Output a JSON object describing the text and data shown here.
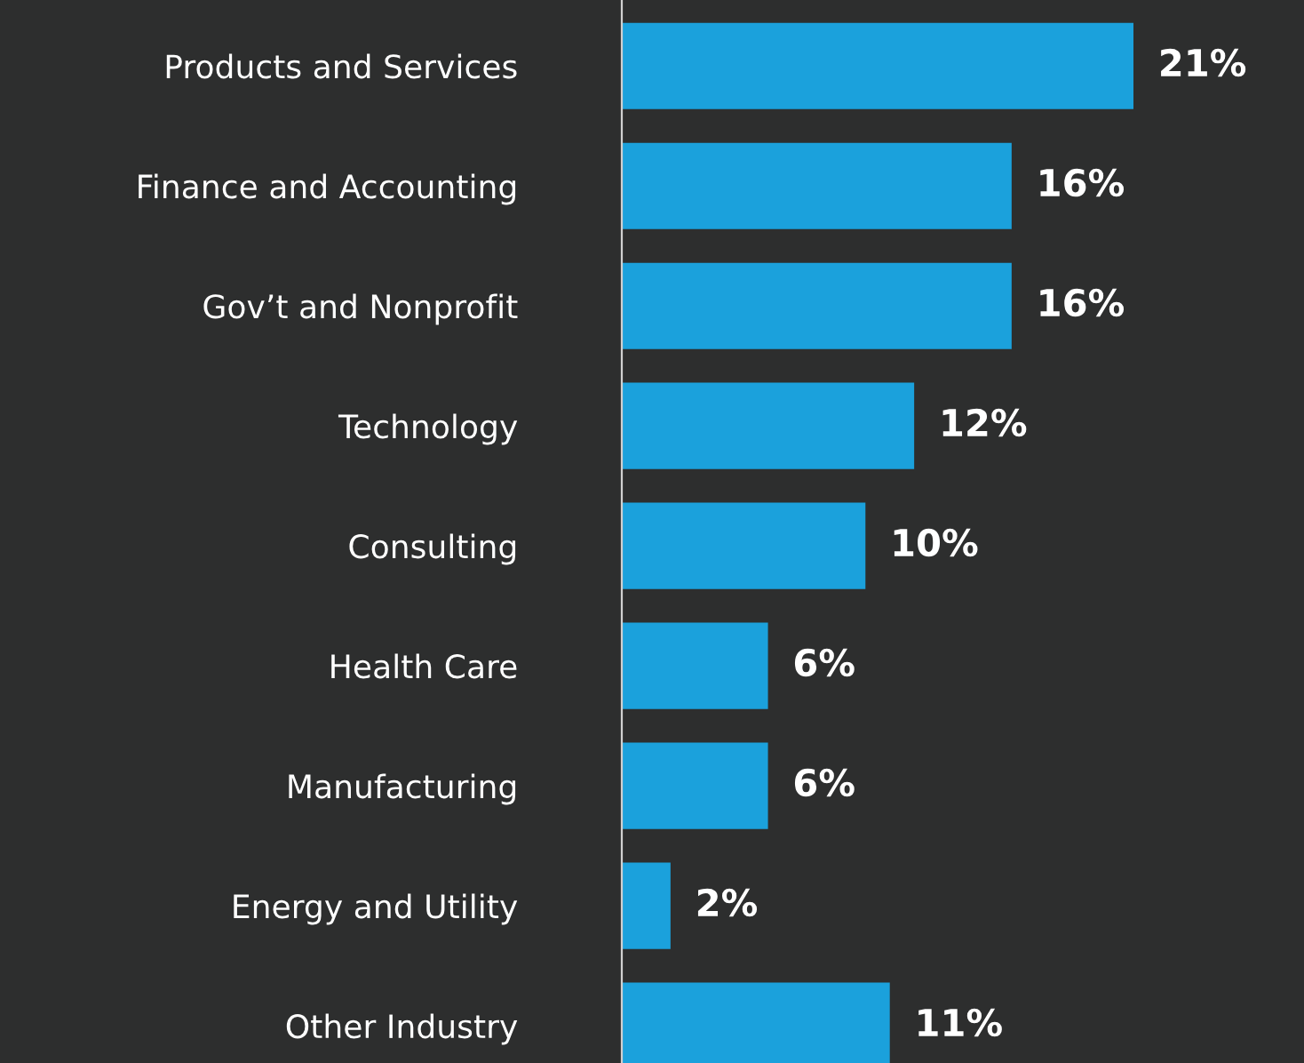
{
  "chart_data": {
    "type": "bar",
    "orientation": "horizontal",
    "categories": [
      "Products and Services",
      "Finance and Accounting",
      "Gov’t and Nonprofit",
      "Technology",
      "Consulting",
      "Health Care",
      "Manufacturing",
      "Energy and Utility",
      "Other Industry"
    ],
    "values": [
      21,
      16,
      16,
      12,
      10,
      6,
      6,
      2,
      11
    ],
    "value_labels": [
      "21%",
      "16%",
      "16%",
      "12%",
      "10%",
      "6%",
      "6%",
      "2%",
      "11%"
    ],
    "color": "#1ba1dc",
    "xlim": [
      0,
      28
    ],
    "grid": false,
    "legend": false
  }
}
